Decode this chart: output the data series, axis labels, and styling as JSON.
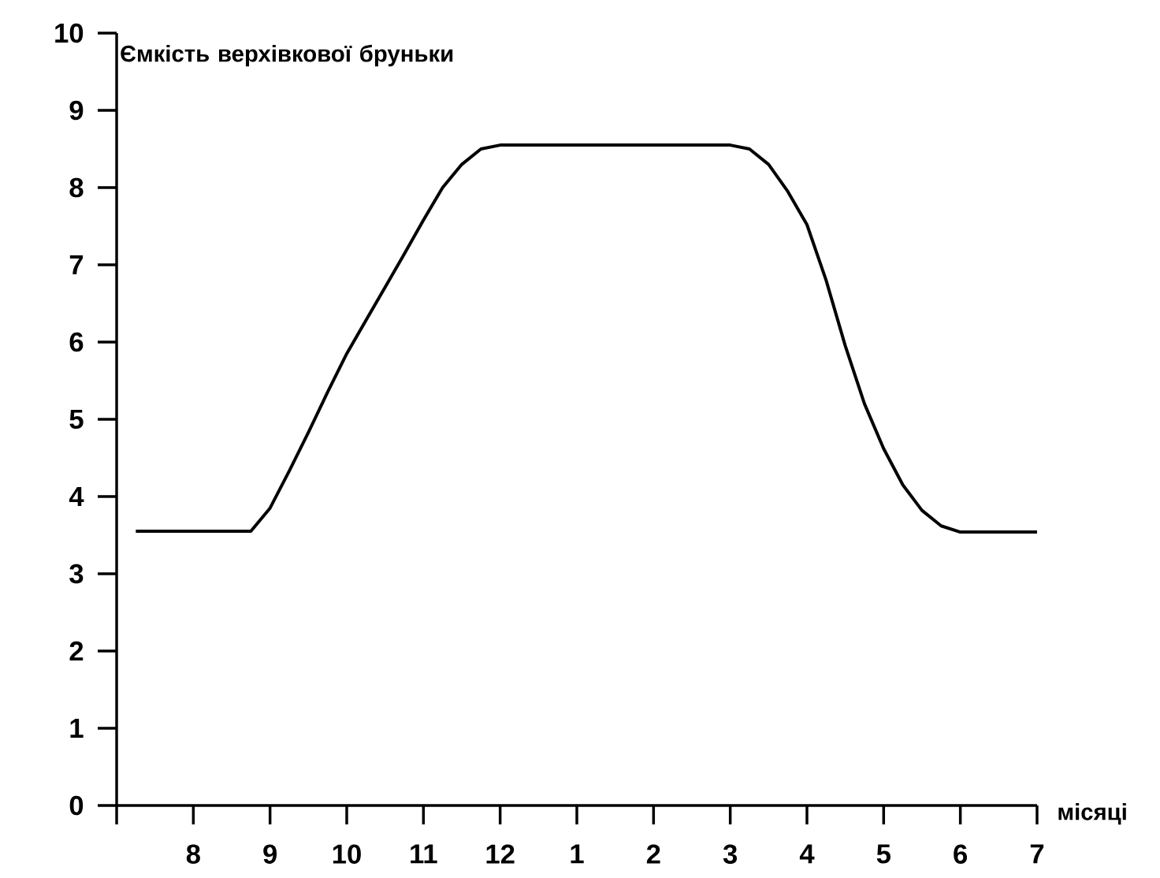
{
  "chart_data": {
    "type": "line",
    "ylabel": "Ємкість верхівкової бруньки",
    "xlabel": "місяці",
    "categories": [
      null,
      null,
      null,
      null,
      "8",
      null,
      null,
      null,
      "9",
      null,
      null,
      null,
      "10",
      null,
      null,
      null,
      "11",
      null,
      null,
      null,
      "12",
      null,
      null,
      null,
      "1",
      null,
      null,
      null,
      "2",
      null,
      null,
      null,
      "3",
      null,
      null,
      null,
      "4",
      null,
      null,
      null,
      "5",
      null,
      null,
      null,
      "6",
      null,
      null,
      null,
      "7"
    ],
    "values": [
      null,
      3.55,
      3.55,
      3.55,
      3.55,
      3.55,
      3.55,
      3.55,
      3.85,
      4.33,
      4.83,
      5.35,
      5.85,
      6.28,
      6.71,
      7.14,
      7.58,
      8.0,
      8.3,
      8.5,
      8.55,
      8.55,
      8.55,
      8.55,
      8.55,
      8.55,
      8.55,
      8.55,
      8.55,
      8.55,
      8.55,
      8.55,
      8.55,
      8.5,
      8.3,
      7.95,
      7.52,
      6.8,
      5.95,
      5.2,
      4.62,
      4.15,
      3.82,
      3.62,
      3.54,
      3.54,
      3.54,
      3.54,
      3.54
    ],
    "color": "#000000",
    "ylim": [
      0,
      10
    ],
    "yticks": [
      0,
      1,
      2,
      3,
      4,
      5,
      6,
      7,
      8,
      9,
      10
    ],
    "marker": "none",
    "line_style": "solid"
  }
}
